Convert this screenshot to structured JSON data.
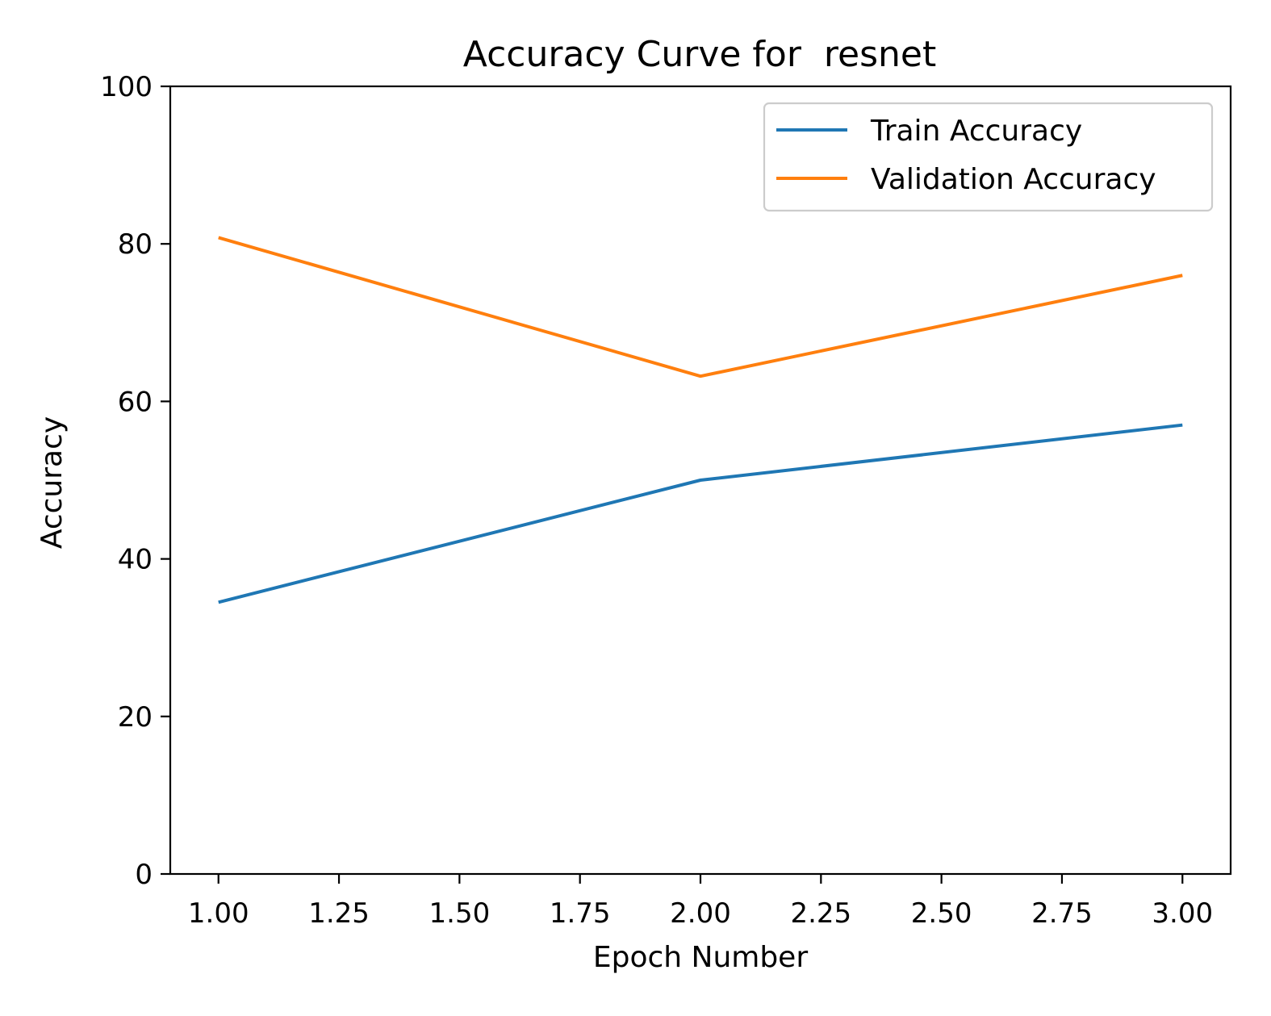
{
  "chart_data": {
    "type": "line",
    "title": "Accuracy Curve for  resnet",
    "xlabel": "Epoch Number",
    "ylabel": "Accuracy",
    "xlim": [
      0.9,
      3.1
    ],
    "ylim": [
      0,
      100
    ],
    "x_ticks": [
      "1.00",
      "1.25",
      "1.50",
      "1.75",
      "2.00",
      "2.25",
      "2.50",
      "2.75",
      "3.00"
    ],
    "y_ticks": [
      "0",
      "20",
      "40",
      "60",
      "80",
      "100"
    ],
    "x": [
      1,
      2,
      3
    ],
    "series": [
      {
        "name": "Train Accuracy",
        "values": [
          34.5,
          50.0,
          57.0
        ],
        "color": "#1f77b4"
      },
      {
        "name": "Validation Accuracy",
        "values": [
          80.8,
          63.2,
          76.0
        ],
        "color": "#ff7f0e"
      }
    ],
    "legend": "upper-right",
    "grid": false
  }
}
